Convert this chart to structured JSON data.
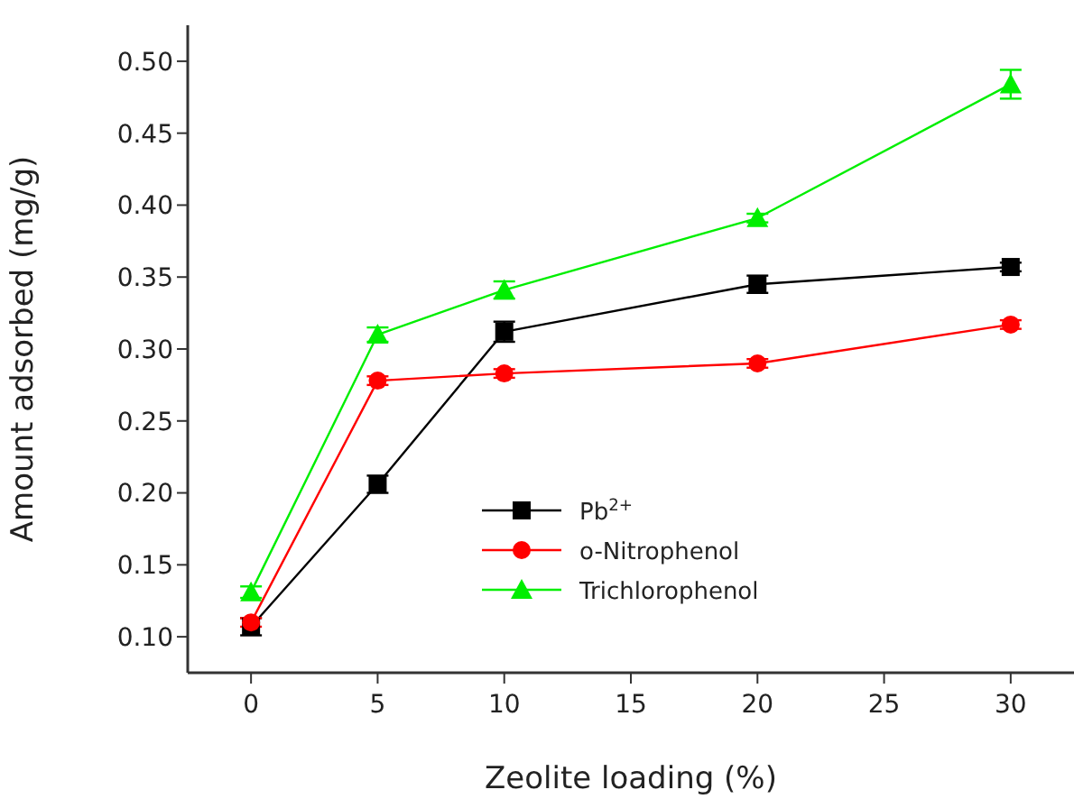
{
  "chart_data": {
    "type": "line",
    "xlabel": "Zeolite loading (%)",
    "ylabel": "Amount adsorbed (mg/g)",
    "x": [
      0,
      5,
      10,
      20,
      30
    ],
    "series": [
      {
        "name": "Pb$^{2+}$",
        "color": "#000000",
        "marker": "square",
        "values": [
          0.107,
          0.206,
          0.312,
          0.345,
          0.357
        ],
        "errors": [
          0.006,
          0.006,
          0.007,
          0.006,
          0.003
        ]
      },
      {
        "name": "o-Nitrophenol",
        "color": "#ff0000",
        "marker": "circle",
        "values": [
          0.11,
          0.278,
          0.283,
          0.29,
          0.317
        ],
        "errors": [
          0.003,
          0.003,
          0.003,
          0.003,
          0.003
        ]
      },
      {
        "name": "Trichlorophenol",
        "color": "#00ee00",
        "marker": "triangle",
        "values": [
          0.131,
          0.31,
          0.341,
          0.391,
          0.484
        ],
        "errors": [
          0.004,
          0.005,
          0.006,
          0.003,
          0.01
        ]
      }
    ],
    "xlim": [
      -2.5,
      32.5
    ],
    "xticks": [
      0,
      5,
      10,
      15,
      20,
      25,
      30
    ],
    "ylim": [
      0.075,
      0.525
    ],
    "yticks": [
      {
        "value": 0.1,
        "label": "0.10"
      },
      0.15,
      {
        "value": 0.2,
        "label": "0.20"
      },
      0.25,
      {
        "value": 0.3,
        "label": "0.30"
      },
      0.35,
      {
        "value": 0.4,
        "label": "0.40"
      },
      0.45,
      {
        "value": 0.5,
        "label": "0.50"
      }
    ],
    "grid": false,
    "legend": "bottom right"
  }
}
